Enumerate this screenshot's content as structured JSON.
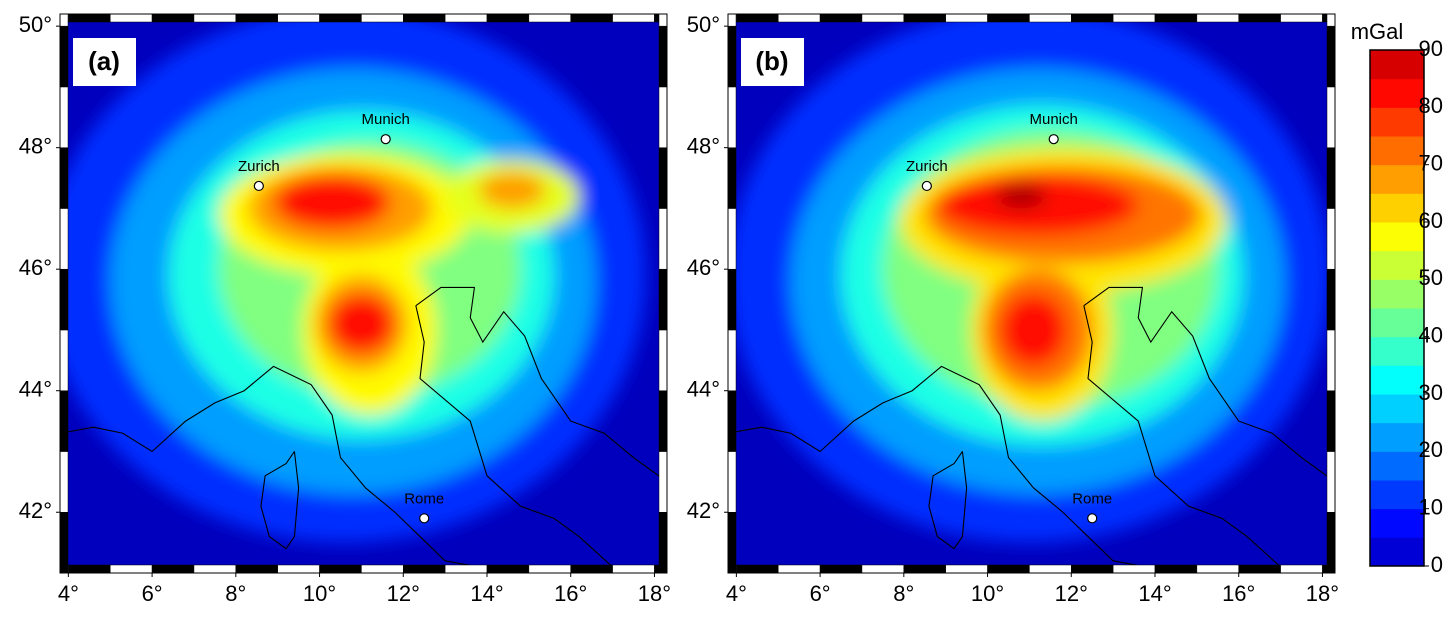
{
  "panels": [
    {
      "label": "(a)",
      "cities": [
        {
          "name": "Munich",
          "lon": 11.58,
          "lat": 48.14
        },
        {
          "name": "Zurich",
          "lon": 8.55,
          "lat": 47.37
        },
        {
          "name": "Rome",
          "lon": 12.5,
          "lat": 41.9
        }
      ]
    },
    {
      "label": "(b)",
      "cities": [
        {
          "name": "Munich",
          "lon": 11.58,
          "lat": 48.14
        },
        {
          "name": "Zurich",
          "lon": 8.55,
          "lat": 47.37
        },
        {
          "name": "Rome",
          "lon": 12.5,
          "lat": 41.9
        }
      ]
    }
  ],
  "axes": {
    "xlim": [
      3.8,
      18.3
    ],
    "ylim": [
      41,
      50.2
    ],
    "xticks": [
      {
        "value": 4,
        "label": "4°"
      },
      {
        "value": 6,
        "label": "6°"
      },
      {
        "value": 8,
        "label": "8°"
      },
      {
        "value": 10,
        "label": "10°"
      },
      {
        "value": 12,
        "label": "12°"
      },
      {
        "value": 14,
        "label": "14°"
      },
      {
        "value": 16,
        "label": "16°"
      },
      {
        "value": 18,
        "label": "18°"
      }
    ],
    "yticks": [
      {
        "value": 42,
        "label": "42°"
      },
      {
        "value": 44,
        "label": "44°"
      },
      {
        "value": 46,
        "label": "46°"
      },
      {
        "value": 48,
        "label": "48°"
      },
      {
        "value": 50,
        "label": "50°"
      }
    ]
  },
  "colorbar": {
    "title": "mGal",
    "lim": [
      0,
      90
    ],
    "ticks": [
      0,
      10,
      20,
      30,
      40,
      50,
      60,
      70,
      80,
      90
    ]
  }
}
